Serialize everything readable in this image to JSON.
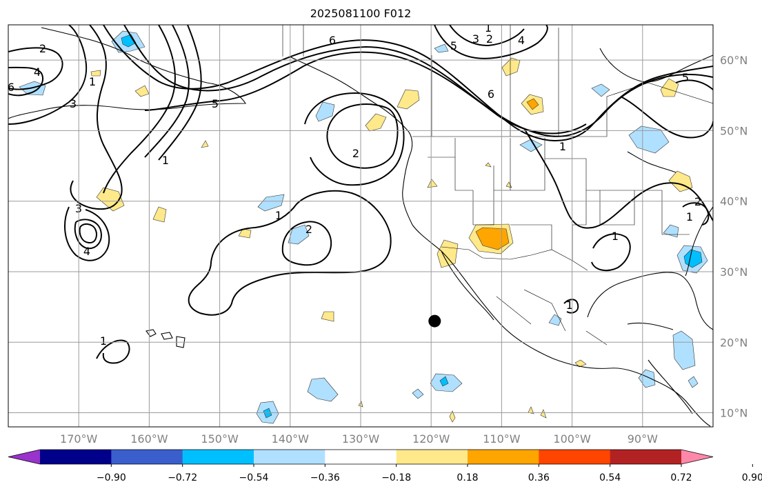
{
  "title": "2025081100 F012",
  "map": {
    "projection": "PlateCarree",
    "lon_range": [
      -180,
      -80
    ],
    "lat_range": [
      8,
      65
    ],
    "land_color": "#ffffff",
    "ocean_color": "#ffffff",
    "gridlines": true,
    "lon_ticks": [
      {
        "value": -170,
        "label": "170°W"
      },
      {
        "value": -160,
        "label": "160°W"
      },
      {
        "value": -150,
        "label": "150°W"
      },
      {
        "value": -140,
        "label": "140°W"
      },
      {
        "value": -130,
        "label": "130°W"
      },
      {
        "value": -120,
        "label": "120°W"
      },
      {
        "value": -110,
        "label": "110°W"
      },
      {
        "value": -100,
        "label": "100°W"
      },
      {
        "value": -90,
        "label": "90°W"
      }
    ],
    "lat_ticks": [
      {
        "value": 10,
        "label": "10°N"
      },
      {
        "value": 20,
        "label": "20°N"
      },
      {
        "value": 30,
        "label": "30°N"
      },
      {
        "value": 40,
        "label": "40°N"
      },
      {
        "value": 50,
        "label": "50°N"
      },
      {
        "value": 60,
        "label": "60°N"
      }
    ],
    "marker": {
      "name": "point-marker",
      "lon": -119.5,
      "lat": 23.0,
      "color": "#000000"
    }
  },
  "colorbar": {
    "extend": "both",
    "levels": [
      -0.9,
      -0.72,
      -0.54,
      -0.36,
      -0.18,
      0.18,
      0.36,
      0.54,
      0.72,
      0.9
    ],
    "tick_labels": [
      "−0.90",
      "−0.72",
      "−0.54",
      "−0.36",
      "−0.18",
      "0.18",
      "0.36",
      "0.54",
      "0.72",
      "0.90"
    ],
    "colors": [
      "#9933cc",
      "#00008b",
      "#3a5fcd",
      "#00bfff",
      "#b0e0ff",
      "#ffffff",
      "#ffe98a",
      "#ffa500",
      "#ff4500",
      "#b22222",
      "#ff88aa"
    ]
  },
  "contour_labels": [
    "2",
    "4",
    "6",
    "1",
    "3",
    "5",
    "6",
    "5",
    "4",
    "3",
    "2",
    "1",
    "2",
    "1",
    "2",
    "1",
    "3",
    "4",
    "1",
    "5",
    "1",
    "1",
    "1",
    "6",
    "2",
    "1"
  ]
}
